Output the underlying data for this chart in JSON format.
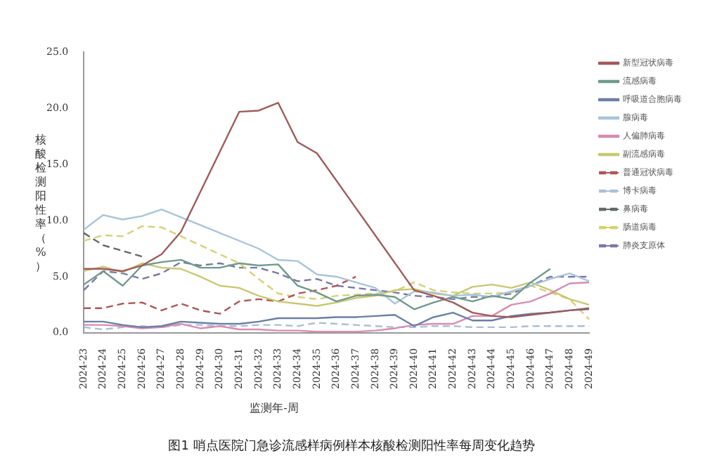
{
  "chart_data": {
    "type": "line",
    "xlabel": "监测年-周",
    "ylabel": "核酸检测阳性率（%）",
    "annotations": [
      "图1 哨点医院门急诊流感样病例样本核酸检测阳性率每周变化趋势"
    ],
    "categories": [
      "2024-23",
      "2024-24",
      "2024-25",
      "2024-26",
      "2024-27",
      "2024-28",
      "2024-29",
      "2024-30",
      "2024-31",
      "2024-32",
      "2024-33",
      "2024-34",
      "2024-35",
      "2024-36",
      "2024-37",
      "2024-38",
      "2024-39",
      "2024-40",
      "2024-41",
      "2024-42",
      "2024-43",
      "2024-44",
      "2024-45",
      "2024-46",
      "2024-47",
      "2024-48",
      "2024-49"
    ],
    "ylim": [
      0,
      25
    ],
    "yticks": [
      {
        "value": 0,
        "label": "0.0"
      },
      {
        "value": 5,
        "label": "5.0"
      },
      {
        "value": 10,
        "label": "10.0"
      },
      {
        "value": 15,
        "label": "15.0"
      },
      {
        "value": 20,
        "label": "20.0"
      },
      {
        "value": 25,
        "label": "25.0"
      }
    ],
    "grid": false,
    "legend": "right",
    "marker": "none",
    "series": [
      {
        "name": "新型冠状病毒",
        "color": "#a05a5a",
        "line_style": "solid",
        "values": [
          5.7,
          5.7,
          5.5,
          6.0,
          7.0,
          9.0,
          null,
          null,
          19.7,
          19.8,
          20.5,
          17.0,
          16.0,
          null,
          null,
          null,
          null,
          3.8,
          3.3,
          2.7,
          1.8,
          1.5,
          1.4,
          1.6,
          1.8,
          2.0,
          2.2
        ]
      },
      {
        "name": "流感病毒",
        "color": "#6f9a8a",
        "line_style": "solid",
        "values": [
          4.3,
          5.5,
          4.2,
          6.0,
          6.3,
          6.5,
          5.8,
          5.8,
          6.2,
          6.0,
          6.1,
          4.2,
          3.6,
          2.8,
          3.3,
          3.4,
          3.2,
          2.1,
          2.7,
          3.2,
          2.8,
          3.3,
          3.0,
          4.5,
          5.7,
          null,
          null
        ]
      },
      {
        "name": "呼吸道合胞病毒",
        "color": "#6a7fa8",
        "line_style": "solid",
        "values": [
          1.0,
          1.0,
          0.7,
          0.5,
          0.6,
          1.0,
          0.9,
          0.8,
          0.8,
          1.0,
          1.3,
          1.3,
          1.3,
          1.4,
          1.4,
          1.5,
          1.6,
          0.6,
          1.4,
          1.8,
          1.1,
          1.1,
          1.5,
          1.7,
          1.8,
          2.0,
          2.1
        ]
      },
      {
        "name": "腺病毒",
        "color": "#a8c4dc",
        "line_style": "solid",
        "values": [
          9.2,
          10.5,
          10.1,
          10.4,
          11.0,
          null,
          null,
          null,
          null,
          7.5,
          6.5,
          6.4,
          5.2,
          5.0,
          4.5,
          4.0,
          2.6,
          3.7,
          3.6,
          3.3,
          3.4,
          3.2,
          3.7,
          4.2,
          4.8,
          5.3,
          4.6
        ]
      },
      {
        "name": "人偏肺病毒",
        "color": "#d98cb0",
        "line_style": "solid",
        "values": [
          0.7,
          0.7,
          0.6,
          0.4,
          0.5,
          0.8,
          0.4,
          0.6,
          0.3,
          0.3,
          0.2,
          0.2,
          0.1,
          0.1,
          0.1,
          0.2,
          0.4,
          0.7,
          0.8,
          0.8,
          1.5,
          1.5,
          2.5,
          2.8,
          3.5,
          4.4,
          4.5
        ]
      },
      {
        "name": "副流感病毒",
        "color": "#c8c870",
        "line_style": "solid",
        "values": [
          5.5,
          5.9,
          5.4,
          6.2,
          5.8,
          5.7,
          5.0,
          4.2,
          4.0,
          3.3,
          2.8,
          2.6,
          2.4,
          2.7,
          3.1,
          3.3,
          3.8,
          3.9,
          3.5,
          3.3,
          4.1,
          4.3,
          4.0,
          4.5,
          3.8,
          3.0,
          2.5
        ]
      },
      {
        "name": "普通冠状病毒",
        "color": "#b05555",
        "line_style": "dashed",
        "values": [
          2.2,
          2.2,
          2.6,
          2.7,
          2.0,
          2.6,
          2.0,
          1.7,
          2.8,
          3.0,
          2.8,
          3.5,
          3.8,
          4.2,
          5.0,
          null,
          null,
          null,
          null,
          null,
          null,
          null,
          null,
          null,
          null,
          null,
          null
        ]
      },
      {
        "name": "博卡病毒",
        "color": "#a8c0d8",
        "line_style": "dashed",
        "values": [
          0.5,
          0.3,
          0.5,
          0.6,
          0.5,
          0.7,
          0.7,
          0.6,
          0.6,
          0.7,
          0.7,
          0.6,
          0.9,
          0.8,
          0.7,
          0.6,
          0.5,
          0.5,
          0.6,
          0.6,
          0.5,
          0.5,
          0.5,
          0.6,
          0.6,
          0.6,
          0.6
        ]
      },
      {
        "name": "鼻病毒",
        "color": "#606868",
        "line_style": "dashed",
        "values": [
          8.9,
          7.8,
          7.3,
          6.8,
          null,
          null,
          null,
          null,
          null,
          null,
          null,
          null,
          null,
          null,
          null,
          null,
          null,
          null,
          null,
          null,
          null,
          null,
          null,
          null,
          null,
          null,
          null
        ]
      },
      {
        "name": "肠道病毒",
        "color": "#d8d070",
        "line_style": "dashed",
        "values": [
          8.2,
          8.7,
          8.6,
          9.5,
          9.4,
          null,
          null,
          null,
          6.2,
          4.8,
          3.5,
          3.2,
          3.0,
          3.3,
          3.4,
          3.5,
          3.7,
          4.5,
          3.8,
          3.6,
          3.5,
          3.5,
          3.6,
          4.2,
          3.6,
          3.0,
          1.2
        ]
      },
      {
        "name": "肺炎支原体",
        "color": "#7878a8",
        "line_style": "dashed",
        "values": [
          3.8,
          5.5,
          5.3,
          4.8,
          5.3,
          6.3,
          6.0,
          6.2,
          5.8,
          5.8,
          5.3,
          4.6,
          4.8,
          4.2,
          4.0,
          3.8,
          3.6,
          3.3,
          3.2,
          3.0,
          3.2,
          3.2,
          3.5,
          4.2,
          5.0,
          5.0,
          5.0
        ]
      }
    ]
  }
}
